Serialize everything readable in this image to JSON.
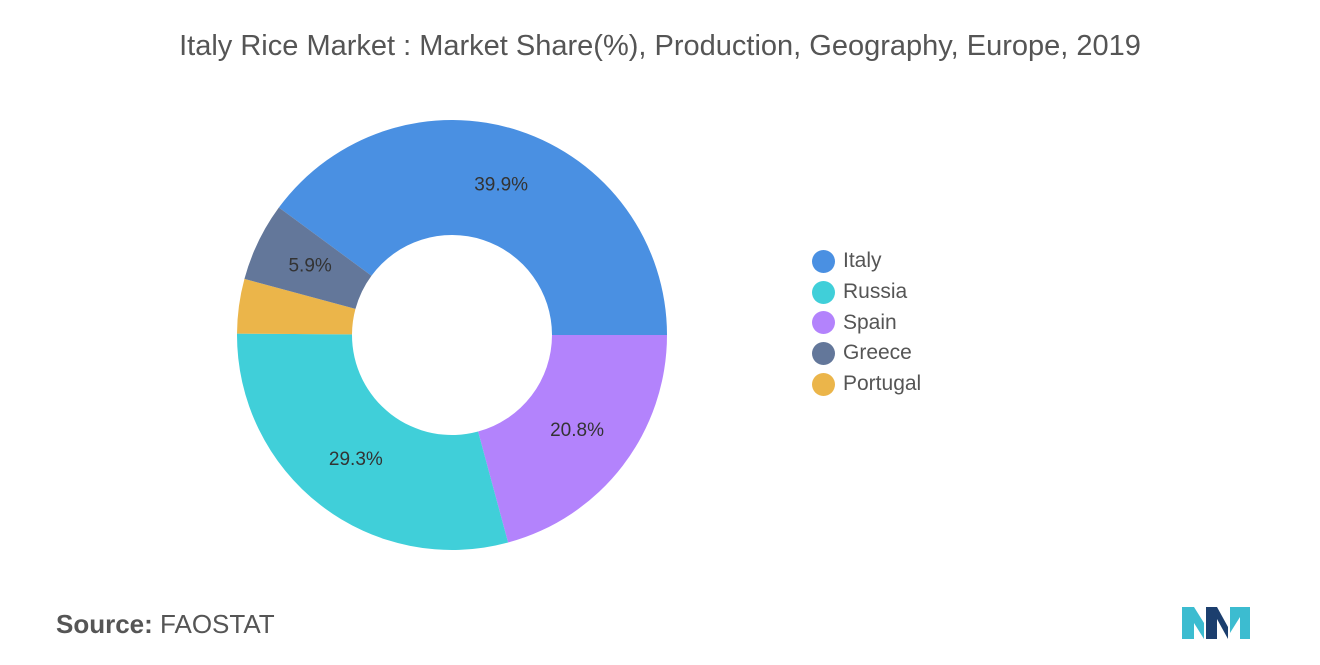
{
  "chart_data": {
    "type": "pie",
    "donut": true,
    "title": "Italy Rice Market : Market Share(%), Production, Geography, Europe, 2019",
    "slices": [
      {
        "name": "Italy",
        "value": 39.9,
        "label": "39.9%",
        "color": "#4a90e2"
      },
      {
        "name": "Spain",
        "value": 20.8,
        "label": "20.8%",
        "color": "#b383fc"
      },
      {
        "name": "Russia",
        "value": 29.3,
        "label": "29.3%",
        "color": "#40cfd9"
      },
      {
        "name": "Portugal",
        "value": 4.1,
        "label": "",
        "color": "#ebb54a"
      },
      {
        "name": "Greece",
        "value": 5.9,
        "label": "5.9%",
        "color": "#63779a"
      }
    ],
    "legend": {
      "position": "right",
      "items": [
        {
          "name": "Italy",
          "color": "#4a90e2"
        },
        {
          "name": "Russia",
          "color": "#40cfd9"
        },
        {
          "name": "Spain",
          "color": "#b383fc"
        },
        {
          "name": "Greece",
          "color": "#63779a"
        },
        {
          "name": "Portugal",
          "color": "#ebb54a"
        }
      ]
    }
  },
  "source": {
    "label": "Source:",
    "value": "FAOSTAT"
  },
  "logo": {
    "icon": "mordor-intelligence-logo-icon",
    "colors": [
      "#1c3f6e",
      "#3cbcd0"
    ]
  }
}
